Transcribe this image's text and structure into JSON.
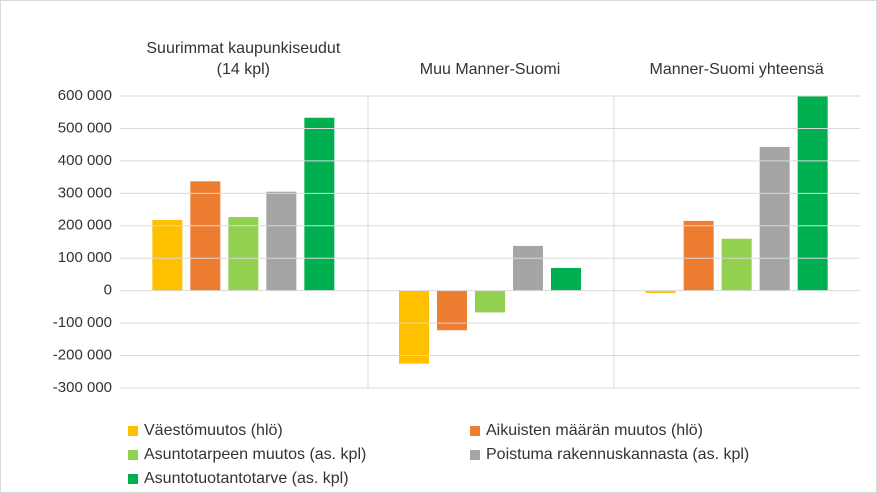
{
  "chart_data": {
    "type": "bar",
    "categories": [
      "Suurimmat kaupunkiseudut (14 kpl)",
      "Muu Manner-Suomi",
      "Manner-Suomi yhteensä"
    ],
    "series": [
      {
        "name": "Väestömuutos (hlö)",
        "color": "#ffc000",
        "values": [
          218000,
          -225000,
          -7000
        ]
      },
      {
        "name": "Aikuisten määrän muutos (hlö)",
        "color": "#ed7d31",
        "values": [
          337000,
          -122000,
          215000
        ]
      },
      {
        "name": "Asuntotarpeen muutos (as. kpl)",
        "color": "#92d050",
        "values": [
          227000,
          -67000,
          160000
        ]
      },
      {
        "name": "Poistuma rakennuskannasta (as. kpl)",
        "color": "#a5a5a5",
        "values": [
          305000,
          138000,
          443000
        ]
      },
      {
        "name": "Asuntotuotantotarve (as. kpl)",
        "color": "#00b050",
        "values": [
          533000,
          70000,
          603000
        ]
      }
    ],
    "ylim": [
      -300000,
      600000
    ],
    "yticks": [
      {
        "value": -300000,
        "label": "-300 000"
      },
      {
        "value": -200000,
        "label": "-200 000"
      },
      {
        "value": -100000,
        "label": "-100 000"
      },
      0,
      {
        "value": 100000,
        "label": "100 000"
      },
      {
        "value": 200000,
        "label": "200 000"
      },
      {
        "value": 300000,
        "label": "300 000"
      },
      {
        "value": 400000,
        "label": "400 000"
      },
      {
        "value": 500000,
        "label": "500 000"
      },
      {
        "value": 600000,
        "label": "600 000"
      }
    ],
    "grid": true,
    "legend": "bottom"
  }
}
